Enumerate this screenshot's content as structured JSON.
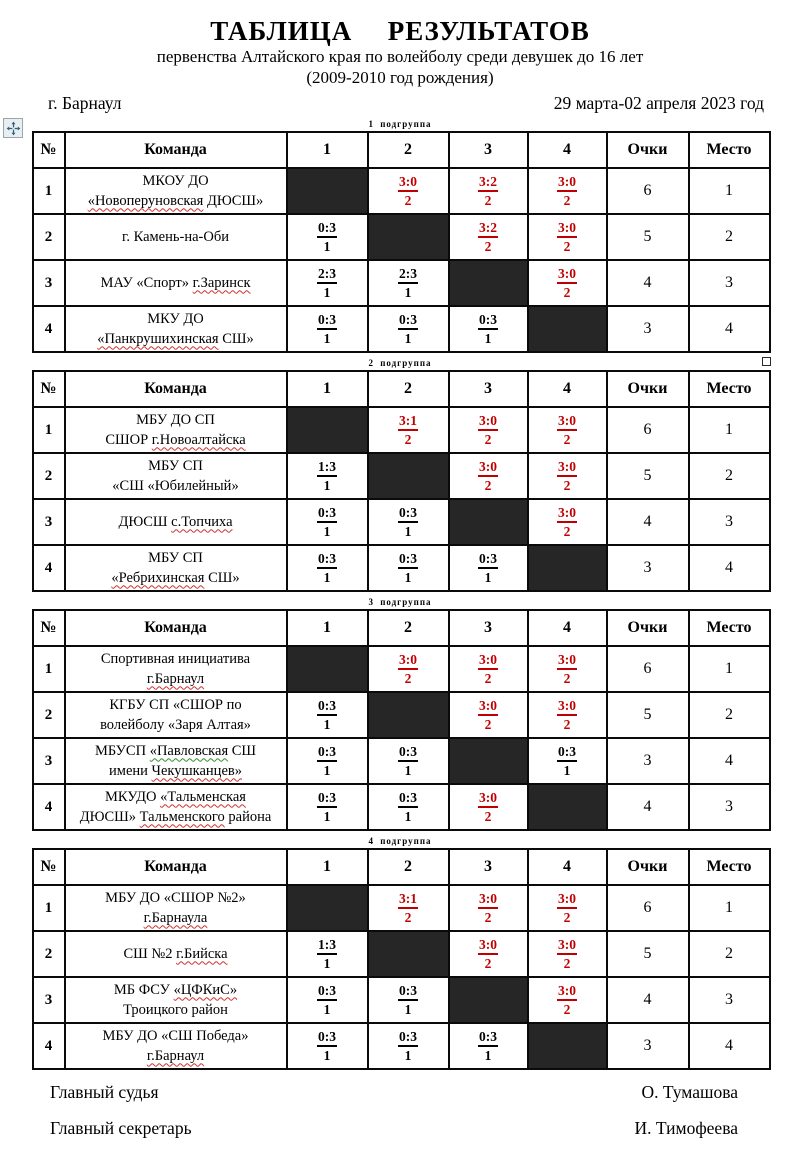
{
  "header": {
    "title": "ТАБЛИЦА  РЕЗУЛЬТАТОВ",
    "subtitle1": "первенства Алтайского края по волейболу среди девушек до 16 лет",
    "subtitle2": "(2009-2010 год рождения)",
    "city": "г. Барнаул",
    "dates": "29 марта-02 апреля 2023 год"
  },
  "columns": [
    "№",
    "Команда",
    "1",
    "2",
    "3",
    "4",
    "Очки",
    "Место"
  ],
  "colors": {
    "win_red": "#c00000",
    "diagonal_fill": "#262626",
    "spellcheck_red": "#d03030",
    "grammar_green": "#2f8f2f",
    "handle_blue": "#2e6080"
  },
  "icons": [
    "table-move-handle-icon",
    "table-resize-handle"
  ],
  "groups": [
    {
      "label": "1 подгруппа",
      "rows": [
        {
          "num": "1",
          "team": [
            [
              {
                "t": "МКОУ ДО"
              }
            ],
            [
              {
                "t": "«Новоперуновская",
                "u": "red"
              },
              {
                "t": " ДЮСШ»"
              }
            ]
          ],
          "cells": [
            null,
            {
              "s": "3:0",
              "p": "2",
              "w": true
            },
            {
              "s": "3:2",
              "p": "2",
              "w": true
            },
            {
              "s": "3:0",
              "p": "2",
              "w": true
            }
          ],
          "points": "6",
          "place": "1"
        },
        {
          "num": "2",
          "team": [
            [
              {
                "t": "г. Камень-на-Оби"
              }
            ]
          ],
          "cells": [
            {
              "s": "0:3",
              "p": "1",
              "w": false
            },
            null,
            {
              "s": "3:2",
              "p": "2",
              "w": true
            },
            {
              "s": "3:0",
              "p": "2",
              "w": true
            }
          ],
          "points": "5",
          "place": "2"
        },
        {
          "num": "3",
          "team": [
            [
              {
                "t": "МАУ «Спорт» "
              },
              {
                "t": "г.Заринск",
                "u": "red"
              }
            ]
          ],
          "cells": [
            {
              "s": "2:3",
              "p": "1",
              "w": false
            },
            {
              "s": "2:3",
              "p": "1",
              "w": false
            },
            null,
            {
              "s": "3:0",
              "p": "2",
              "w": true
            }
          ],
          "points": "4",
          "place": "3"
        },
        {
          "num": "4",
          "team": [
            [
              {
                "t": "МКУ ДО"
              }
            ],
            [
              {
                "t": "«Панкрушихинская",
                "u": "red"
              },
              {
                "t": " СШ»"
              }
            ]
          ],
          "cells": [
            {
              "s": "0:3",
              "p": "1",
              "w": false
            },
            {
              "s": "0:3",
              "p": "1",
              "w": false
            },
            {
              "s": "0:3",
              "p": "1",
              "w": false
            },
            null
          ],
          "points": "3",
          "place": "4"
        }
      ]
    },
    {
      "label": "2 подгруппа",
      "rows": [
        {
          "num": "1",
          "team": [
            [
              {
                "t": "МБУ ДО СП"
              }
            ],
            [
              {
                "t": "СШОР "
              },
              {
                "t": "г.Новоалтайска",
                "u": "red"
              }
            ]
          ],
          "cells": [
            null,
            {
              "s": "3:1",
              "p": "2",
              "w": true
            },
            {
              "s": "3:0",
              "p": "2",
              "w": true
            },
            {
              "s": "3:0",
              "p": "2",
              "w": true
            }
          ],
          "points": "6",
          "place": "1"
        },
        {
          "num": "2",
          "team": [
            [
              {
                "t": "МБУ СП"
              }
            ],
            [
              {
                "t": "«СШ «Юбилейный»"
              }
            ]
          ],
          "cells": [
            {
              "s": "1:3",
              "p": "1",
              "w": false
            },
            null,
            {
              "s": "3:0",
              "p": "2",
              "w": true
            },
            {
              "s": "3:0",
              "p": "2",
              "w": true
            }
          ],
          "points": "5",
          "place": "2"
        },
        {
          "num": "3",
          "team": [
            [
              {
                "t": "ДЮСШ "
              },
              {
                "t": "с.Топчиха",
                "u": "red"
              }
            ]
          ],
          "cells": [
            {
              "s": "0:3",
              "p": "1",
              "w": false
            },
            {
              "s": "0:3",
              "p": "1",
              "w": false
            },
            null,
            {
              "s": "3:0",
              "p": "2",
              "w": true
            }
          ],
          "points": "4",
          "place": "3"
        },
        {
          "num": "4",
          "team": [
            [
              {
                "t": "МБУ СП"
              }
            ],
            [
              {
                "t": "«Ребрихинская",
                "u": "red"
              },
              {
                "t": " СШ»"
              }
            ]
          ],
          "cells": [
            {
              "s": "0:3",
              "p": "1",
              "w": false
            },
            {
              "s": "0:3",
              "p": "1",
              "w": false
            },
            {
              "s": "0:3",
              "p": "1",
              "w": false
            },
            null
          ],
          "points": "3",
          "place": "4"
        }
      ]
    },
    {
      "label": "3 подгруппа",
      "rows": [
        {
          "num": "1",
          "team": [
            [
              {
                "t": "Спортивная инициатива"
              }
            ],
            [
              {
                "t": "г.Барнаул",
                "u": "red"
              }
            ]
          ],
          "cells": [
            null,
            {
              "s": "3:0",
              "p": "2",
              "w": true
            },
            {
              "s": "3:0",
              "p": "2",
              "w": true
            },
            {
              "s": "3:0",
              "p": "2",
              "w": true
            }
          ],
          "points": "6",
          "place": "1"
        },
        {
          "num": "2",
          "team": [
            [
              {
                "t": "КГБУ СП «СШОР по"
              }
            ],
            [
              {
                "t": "волейболу «Заря Алтая»"
              }
            ]
          ],
          "cells": [
            {
              "s": "0:3",
              "p": "1",
              "w": false
            },
            null,
            {
              "s": "3:0",
              "p": "2",
              "w": true
            },
            {
              "s": "3:0",
              "p": "2",
              "w": true
            }
          ],
          "points": "5",
          "place": "2"
        },
        {
          "num": "3",
          "team": [
            [
              {
                "t": "МБУСП "
              },
              {
                "t": "«Павловская",
                "u": "green"
              },
              {
                "t": " СШ"
              }
            ],
            [
              {
                "t": "имени "
              },
              {
                "t": "Чекушканцев»",
                "u": "red"
              }
            ]
          ],
          "cells": [
            {
              "s": "0:3",
              "p": "1",
              "w": false
            },
            {
              "s": "0:3",
              "p": "1",
              "w": false
            },
            null,
            {
              "s": "0:3",
              "p": "1",
              "w": false
            }
          ],
          "points": "3",
          "place": "4"
        },
        {
          "num": "4",
          "team": [
            [
              {
                "t": "МКУДО "
              },
              {
                "t": "«Тальменская",
                "u": "red"
              }
            ],
            [
              {
                "t": "ДЮСШ» "
              },
              {
                "t": "Тальменского",
                "u": "red"
              },
              {
                "t": " района"
              }
            ]
          ],
          "cells": [
            {
              "s": "0:3",
              "p": "1",
              "w": false
            },
            {
              "s": "0:3",
              "p": "1",
              "w": false
            },
            {
              "s": "3:0",
              "p": "2",
              "w": true
            },
            null
          ],
          "points": "4",
          "place": "3"
        }
      ]
    },
    {
      "label": "4 подгруппа",
      "rows": [
        {
          "num": "1",
          "team": [
            [
              {
                "t": "МБУ ДО «СШОР №2»"
              }
            ],
            [
              {
                "t": "г.Барнаула",
                "u": "red"
              }
            ]
          ],
          "cells": [
            null,
            {
              "s": "3:1",
              "p": "2",
              "w": true
            },
            {
              "s": "3:0",
              "p": "2",
              "w": true
            },
            {
              "s": "3:0",
              "p": "2",
              "w": true
            }
          ],
          "points": "6",
          "place": "1"
        },
        {
          "num": "2",
          "team": [
            [
              {
                "t": "СШ №2 "
              },
              {
                "t": "г.Бийска",
                "u": "red"
              }
            ]
          ],
          "cells": [
            {
              "s": "1:3",
              "p": "1",
              "w": false
            },
            null,
            {
              "s": "3:0",
              "p": "2",
              "w": true
            },
            {
              "s": "3:0",
              "p": "2",
              "w": true
            }
          ],
          "points": "5",
          "place": "2"
        },
        {
          "num": "3",
          "team": [
            [
              {
                "t": "МБ ФСУ "
              },
              {
                "t": "«ЦФКиС»",
                "u": "red"
              }
            ],
            [
              {
                "t": "Троицкого район"
              }
            ]
          ],
          "cells": [
            {
              "s": "0:3",
              "p": "1",
              "w": false
            },
            {
              "s": "0:3",
              "p": "1",
              "w": false
            },
            null,
            {
              "s": "3:0",
              "p": "2",
              "w": true
            }
          ],
          "points": "4",
          "place": "3"
        },
        {
          "num": "4",
          "team": [
            [
              {
                "t": "МБУ ДО «СШ Победа»"
              }
            ],
            [
              {
                "t": "г.Барнаул",
                "u": "red"
              }
            ]
          ],
          "cells": [
            {
              "s": "0:3",
              "p": "1",
              "w": false
            },
            {
              "s": "0:3",
              "p": "1",
              "w": false
            },
            {
              "s": "0:3",
              "p": "1",
              "w": false
            },
            null
          ],
          "points": "3",
          "place": "4"
        }
      ]
    }
  ],
  "footer": {
    "rows": [
      {
        "label": "Главный судья",
        "name": "О. Тумашова"
      },
      {
        "label": "Главный секретарь",
        "name": "И. Тимофеева"
      }
    ]
  }
}
